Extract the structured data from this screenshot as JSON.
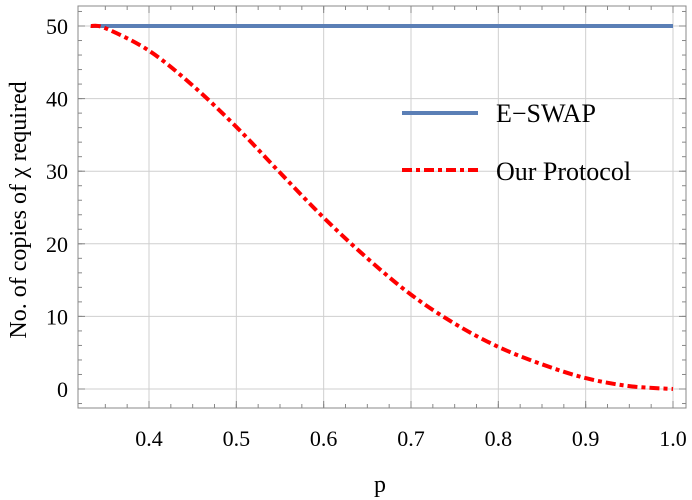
{
  "chart_data": {
    "type": "line",
    "title": "",
    "xlabel": "p",
    "ylabel": "No. of copies of χ required",
    "xlim": [
      0.3333,
      1.0
    ],
    "ylim": [
      -2.5,
      52.5
    ],
    "xticks": [
      "0.4",
      "0.5",
      "0.6",
      "0.7",
      "0.8",
      "0.9",
      "1.0"
    ],
    "yticks": [
      "0",
      "10",
      "20",
      "30",
      "40",
      "50"
    ],
    "grid": true,
    "legend_position": "upper right (inside)",
    "series": [
      {
        "name": "E−SWAP",
        "color": "#5b7fb6",
        "style": "solid",
        "x": [
          0.3333,
          0.4,
          0.5,
          0.6,
          0.7,
          0.8,
          0.9,
          1.0
        ],
        "values": [
          50,
          50,
          50,
          50,
          50,
          50,
          50,
          50
        ]
      },
      {
        "name": "Our Protocol",
        "color": "#ff0000",
        "style": "dash-dot",
        "x": [
          0.3333,
          0.35,
          0.4,
          0.45,
          0.5,
          0.55,
          0.6,
          0.65,
          0.7,
          0.75,
          0.8,
          0.85,
          0.9,
          0.95,
          1.0
        ],
        "values": [
          50,
          49.7,
          46.6,
          41.8,
          36.1,
          29.8,
          23.6,
          18.0,
          13.0,
          9.0,
          5.8,
          3.4,
          1.5,
          0.4,
          0
        ]
      }
    ]
  },
  "legend": {
    "item1": "E−SWAP",
    "item2": "Our Protocol"
  },
  "axes": {
    "xlabel": "p",
    "ylabel": "No. of copies of χ required",
    "xticks": [
      "0.4",
      "0.5",
      "0.6",
      "0.7",
      "0.8",
      "0.9",
      "1.0"
    ],
    "yticks": [
      "0",
      "10",
      "20",
      "30",
      "40",
      "50"
    ]
  }
}
